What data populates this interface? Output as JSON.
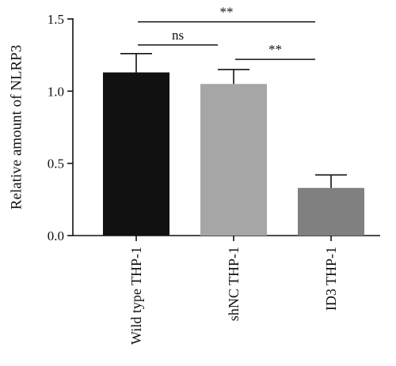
{
  "chart_data": {
    "type": "bar",
    "title": "",
    "xlabel": "",
    "ylabel": "Relative amount of NLRP3",
    "ylim": [
      0,
      1.5
    ],
    "yticks": [
      "0.0",
      "0.5",
      "1.0",
      "1.5"
    ],
    "grid": false,
    "categories": [
      "Wild type THP-1",
      "shNC THP-1",
      "ID3 THP-1"
    ],
    "values": [
      1.13,
      1.05,
      0.33
    ],
    "errors": [
      0.13,
      0.1,
      0.09
    ],
    "colors": [
      "#111111",
      "#a6a6a6",
      "#808080"
    ],
    "significance": [
      {
        "from": 0,
        "to": 2,
        "label": "**",
        "y": 1.48
      },
      {
        "from": 0,
        "to": 1,
        "label": "ns",
        "y": 1.32
      },
      {
        "from": 1,
        "to": 2,
        "label": "**",
        "y": 1.22
      }
    ]
  }
}
